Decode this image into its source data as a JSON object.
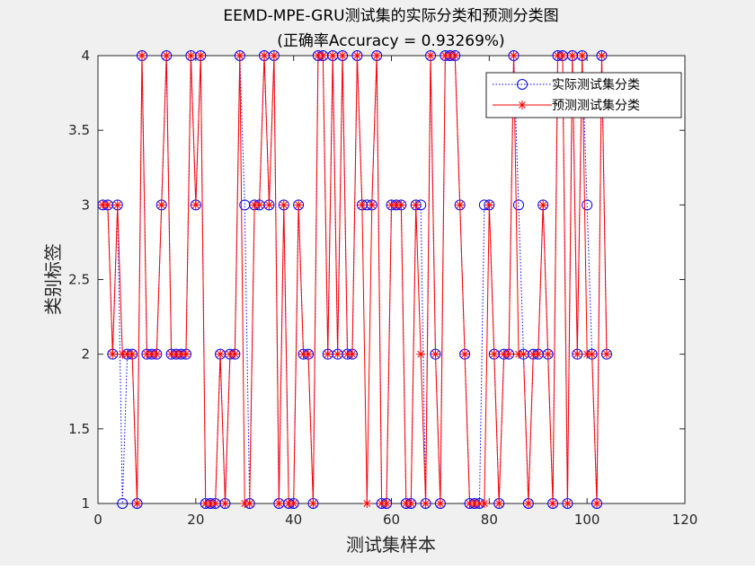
{
  "chart_data": {
    "type": "line",
    "title": "EEMD-MPE-GRU测试集的实际分类和预测分类图",
    "subtitle": "(正确率Accuracy = 0.93269%)",
    "xlabel": "测试集样本",
    "ylabel": "类别标签",
    "xlim": [
      0,
      120
    ],
    "ylim": [
      1,
      4
    ],
    "xticks": [
      0,
      20,
      40,
      60,
      80,
      100,
      120
    ],
    "xtick_labels": [
      "0",
      "20",
      "40",
      "60",
      "80",
      "100",
      "120"
    ],
    "yticks": [
      1,
      1.5,
      2,
      2.5,
      3,
      3.5,
      4
    ],
    "ytick_labels": [
      "1",
      "1.5",
      "2",
      "2.5",
      "3",
      "3.5",
      "4"
    ],
    "grid": false,
    "legend_position": "top-right",
    "x": [
      1,
      2,
      3,
      4,
      5,
      6,
      7,
      8,
      9,
      10,
      11,
      12,
      13,
      14,
      15,
      16,
      17,
      18,
      19,
      20,
      21,
      22,
      23,
      24,
      25,
      26,
      27,
      28,
      29,
      30,
      31,
      32,
      33,
      34,
      35,
      36,
      37,
      38,
      39,
      40,
      41,
      42,
      43,
      44,
      45,
      46,
      47,
      48,
      49,
      50,
      51,
      52,
      53,
      54,
      55,
      56,
      57,
      58,
      59,
      60,
      61,
      62,
      63,
      64,
      65,
      66,
      67,
      68,
      69,
      70,
      71,
      72,
      73,
      74,
      75,
      76,
      77,
      78,
      79,
      80,
      81,
      82,
      83,
      84,
      85,
      86,
      87,
      88,
      89,
      90,
      91,
      92,
      93,
      94,
      95,
      96,
      97,
      98,
      99,
      100,
      101,
      102,
      103,
      104
    ],
    "series": [
      {
        "name": "实际测试集分类",
        "color": "#0000ff",
        "line_style": "dotted",
        "marker": "circle",
        "values": [
          3,
          3,
          2,
          3,
          1,
          2,
          2,
          1,
          4,
          2,
          2,
          2,
          3,
          4,
          2,
          2,
          2,
          2,
          4,
          3,
          4,
          1,
          1,
          1,
          2,
          1,
          2,
          2,
          4,
          3,
          1,
          3,
          3,
          4,
          3,
          4,
          1,
          3,
          1,
          1,
          3,
          2,
          2,
          1,
          4,
          4,
          2,
          4,
          2,
          4,
          2,
          2,
          4,
          3,
          3,
          3,
          4,
          1,
          1,
          3,
          3,
          3,
          1,
          1,
          3,
          3,
          1,
          4,
          2,
          1,
          4,
          4,
          4,
          3,
          2,
          1,
          1,
          1,
          3,
          3,
          2,
          1,
          2,
          2,
          4,
          3,
          2,
          1,
          2,
          2,
          3,
          2,
          1,
          4,
          4,
          1,
          4,
          2,
          4,
          3,
          2,
          1,
          4,
          2
        ]
      },
      {
        "name": "预测测试集分类",
        "color": "#ff0000",
        "line_style": "solid",
        "marker": "asterisk",
        "values": [
          3,
          3,
          2,
          3,
          2,
          2,
          2,
          1,
          4,
          2,
          2,
          2,
          3,
          4,
          2,
          2,
          2,
          2,
          4,
          3,
          4,
          1,
          1,
          1,
          2,
          1,
          2,
          2,
          4,
          1,
          1,
          3,
          3,
          4,
          3,
          4,
          1,
          3,
          1,
          1,
          3,
          2,
          2,
          1,
          4,
          4,
          2,
          4,
          2,
          4,
          2,
          2,
          4,
          3,
          1,
          3,
          4,
          1,
          1,
          3,
          3,
          3,
          1,
          1,
          3,
          2,
          1,
          4,
          2,
          1,
          4,
          4,
          4,
          3,
          2,
          1,
          1,
          1,
          1,
          3,
          2,
          1,
          2,
          2,
          4,
          2,
          2,
          1,
          2,
          2,
          3,
          2,
          1,
          4,
          4,
          1,
          4,
          2,
          4,
          2,
          2,
          1,
          4,
          2
        ]
      }
    ]
  }
}
